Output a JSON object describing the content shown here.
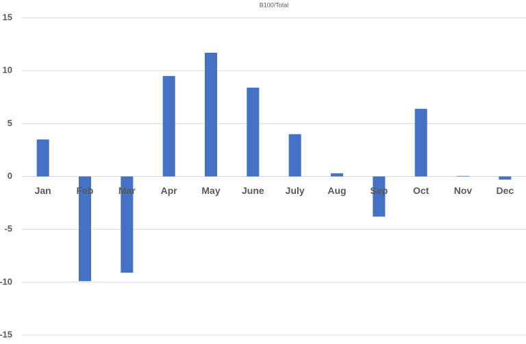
{
  "chart_data": {
    "type": "bar",
    "title": "B100/Total",
    "categories": [
      "Jan",
      "Feb",
      "Mar",
      "Apr",
      "May",
      "June",
      "July",
      "Aug",
      "Sep",
      "Oct",
      "Nov",
      "Dec"
    ],
    "values": [
      3.5,
      -9.9,
      -9.1,
      9.5,
      11.7,
      8.4,
      4.0,
      0.3,
      -3.8,
      6.4,
      0.05,
      -0.3
    ],
    "color": "#4472c4",
    "ylim": [
      -15,
      15
    ],
    "yticks": [
      -15,
      -10,
      -5,
      0,
      5,
      10,
      15
    ],
    "grid": true
  }
}
